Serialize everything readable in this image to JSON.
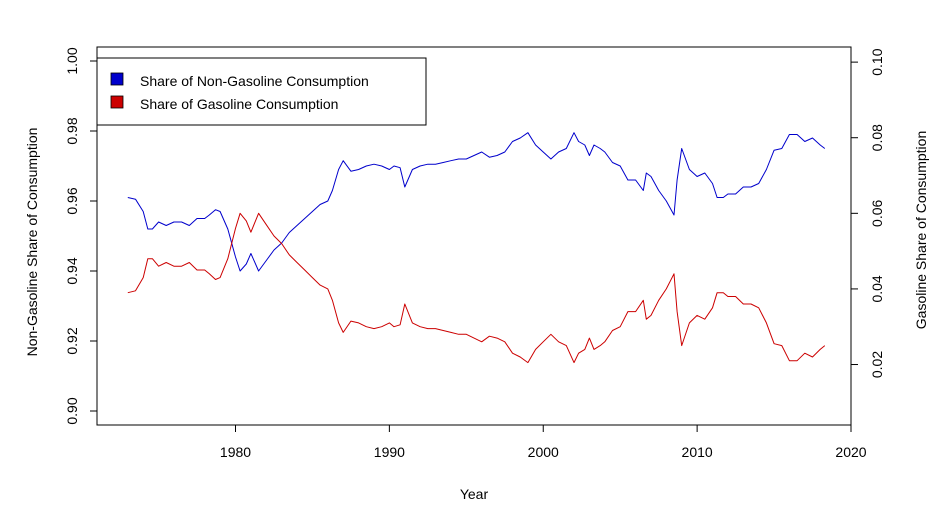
{
  "chart_data": {
    "type": "line",
    "title": "",
    "xlabel": "Year",
    "ylabel_left": "Non-Gasoline Share of Consumption",
    "ylabel_right": "Gasoline Share of Consumption",
    "xlim": [
      1971,
      2020
    ],
    "ylim_left": [
      0.896,
      1.004
    ],
    "ylim_right": [
      0.004,
      0.104
    ],
    "x_ticks": [
      1980,
      1990,
      2000,
      2010,
      2020
    ],
    "y_ticks_left": [
      0.9,
      0.92,
      0.94,
      0.96,
      0.98,
      1.0
    ],
    "y_ticks_right": [
      0.02,
      0.04,
      0.06,
      0.08,
      0.1
    ],
    "grid": false,
    "legend_position": "top-left",
    "x_tick_labels": [
      "1980",
      "1990",
      "2000",
      "2010",
      "2020"
    ],
    "y_tick_labels_left": [
      "0.90",
      "0.92",
      "0.94",
      "0.96",
      "0.98",
      "1.00"
    ],
    "y_tick_labels_right": [
      "0.02",
      "0.04",
      "0.06",
      "0.08",
      "0.10"
    ],
    "series": [
      {
        "name": "Share of Non-Gasoline Consumption",
        "color": "#0000CC",
        "axis": "left",
        "x": [
          1973.0,
          1973.5,
          1974.0,
          1974.3,
          1974.6,
          1975.0,
          1975.5,
          1976.0,
          1976.5,
          1977.0,
          1977.5,
          1978.0,
          1978.3,
          1978.7,
          1979.0,
          1979.5,
          1980.0,
          1980.3,
          1980.7,
          1981.0,
          1981.5,
          1982.0,
          1982.5,
          1983.0,
          1983.5,
          1984.0,
          1984.5,
          1985.0,
          1985.5,
          1986.0,
          1986.3,
          1986.7,
          1987.0,
          1987.5,
          1988.0,
          1988.5,
          1989.0,
          1989.5,
          1990.0,
          1990.3,
          1990.7,
          1991.0,
          1991.5,
          1992.0,
          1992.5,
          1993.0,
          1993.5,
          1994.0,
          1994.5,
          1995.0,
          1995.5,
          1996.0,
          1996.5,
          1997.0,
          1997.5,
          1998.0,
          1998.5,
          1999.0,
          1999.5,
          2000.0,
          2000.5,
          2001.0,
          2001.5,
          2002.0,
          2002.3,
          2002.7,
          2003.0,
          2003.3,
          2003.7,
          2004.0,
          2004.5,
          2005.0,
          2005.5,
          2006.0,
          2006.5,
          2006.7,
          2007.0,
          2007.5,
          2008.0,
          2008.5,
          2008.7,
          2009.0,
          2009.5,
          2010.0,
          2010.5,
          2011.0,
          2011.3,
          2011.7,
          2012.0,
          2012.5,
          2013.0,
          2013.5,
          2014.0,
          2014.5,
          2015.0,
          2015.5,
          2016.0,
          2016.5,
          2017.0,
          2017.5,
          2018.0,
          2018.3
        ],
        "values": [
          0.961,
          0.9605,
          0.957,
          0.952,
          0.952,
          0.954,
          0.953,
          0.954,
          0.954,
          0.953,
          0.955,
          0.955,
          0.956,
          0.9575,
          0.957,
          0.952,
          0.944,
          0.94,
          0.942,
          0.945,
          0.94,
          0.943,
          0.946,
          0.948,
          0.951,
          0.953,
          0.955,
          0.957,
          0.959,
          0.96,
          0.963,
          0.969,
          0.9715,
          0.9685,
          0.969,
          0.97,
          0.9705,
          0.97,
          0.969,
          0.97,
          0.9695,
          0.964,
          0.969,
          0.97,
          0.9705,
          0.9705,
          0.971,
          0.9715,
          0.972,
          0.972,
          0.973,
          0.974,
          0.9725,
          0.973,
          0.974,
          0.977,
          0.978,
          0.9795,
          0.976,
          0.974,
          0.972,
          0.974,
          0.975,
          0.9795,
          0.977,
          0.976,
          0.973,
          0.976,
          0.975,
          0.974,
          0.971,
          0.97,
          0.966,
          0.966,
          0.963,
          0.968,
          0.967,
          0.963,
          0.96,
          0.956,
          0.966,
          0.975,
          0.969,
          0.967,
          0.968,
          0.965,
          0.961,
          0.961,
          0.962,
          0.962,
          0.964,
          0.964,
          0.965,
          0.969,
          0.9745,
          0.975,
          0.979,
          0.979,
          0.977,
          0.978,
          0.976,
          0.975
        ]
      },
      {
        "name": "Share of Gasoline Consumption",
        "color": "#CC0000",
        "axis": "right",
        "x": [
          1973.0,
          1973.5,
          1974.0,
          1974.3,
          1974.6,
          1975.0,
          1975.5,
          1976.0,
          1976.5,
          1977.0,
          1977.5,
          1978.0,
          1978.3,
          1978.7,
          1979.0,
          1979.5,
          1980.0,
          1980.3,
          1980.7,
          1981.0,
          1981.5,
          1982.0,
          1982.5,
          1983.0,
          1983.5,
          1984.0,
          1984.5,
          1985.0,
          1985.5,
          1986.0,
          1986.3,
          1986.7,
          1987.0,
          1987.5,
          1988.0,
          1988.5,
          1989.0,
          1989.5,
          1990.0,
          1990.3,
          1990.7,
          1991.0,
          1991.5,
          1992.0,
          1992.5,
          1993.0,
          1993.5,
          1994.0,
          1994.5,
          1995.0,
          1995.5,
          1996.0,
          1996.5,
          1997.0,
          1997.5,
          1998.0,
          1998.5,
          1999.0,
          1999.5,
          2000.0,
          2000.5,
          2001.0,
          2001.5,
          2002.0,
          2002.3,
          2002.7,
          2003.0,
          2003.3,
          2003.7,
          2004.0,
          2004.5,
          2005.0,
          2005.5,
          2006.0,
          2006.5,
          2006.7,
          2007.0,
          2007.5,
          2008.0,
          2008.5,
          2008.7,
          2009.0,
          2009.5,
          2010.0,
          2010.5,
          2011.0,
          2011.3,
          2011.7,
          2012.0,
          2012.5,
          2013.0,
          2013.5,
          2014.0,
          2014.5,
          2015.0,
          2015.5,
          2016.0,
          2016.5,
          2017.0,
          2017.5,
          2018.0,
          2018.3
        ],
        "values": [
          0.039,
          0.0395,
          0.043,
          0.048,
          0.048,
          0.046,
          0.047,
          0.046,
          0.046,
          0.047,
          0.045,
          0.045,
          0.044,
          0.0425,
          0.043,
          0.048,
          0.056,
          0.06,
          0.058,
          0.055,
          0.06,
          0.057,
          0.054,
          0.052,
          0.049,
          0.047,
          0.045,
          0.043,
          0.041,
          0.04,
          0.037,
          0.031,
          0.0285,
          0.0315,
          0.031,
          0.03,
          0.0295,
          0.03,
          0.031,
          0.03,
          0.0305,
          0.036,
          0.031,
          0.03,
          0.0295,
          0.0295,
          0.029,
          0.0285,
          0.028,
          0.028,
          0.027,
          0.026,
          0.0275,
          0.027,
          0.026,
          0.023,
          0.022,
          0.0205,
          0.024,
          0.026,
          0.028,
          0.026,
          0.025,
          0.0205,
          0.023,
          0.024,
          0.027,
          0.024,
          0.025,
          0.026,
          0.029,
          0.03,
          0.034,
          0.034,
          0.037,
          0.032,
          0.033,
          0.037,
          0.04,
          0.044,
          0.034,
          0.025,
          0.031,
          0.033,
          0.032,
          0.035,
          0.039,
          0.039,
          0.038,
          0.038,
          0.036,
          0.036,
          0.035,
          0.031,
          0.0255,
          0.025,
          0.021,
          0.021,
          0.023,
          0.022,
          0.024,
          0.025
        ]
      }
    ]
  }
}
